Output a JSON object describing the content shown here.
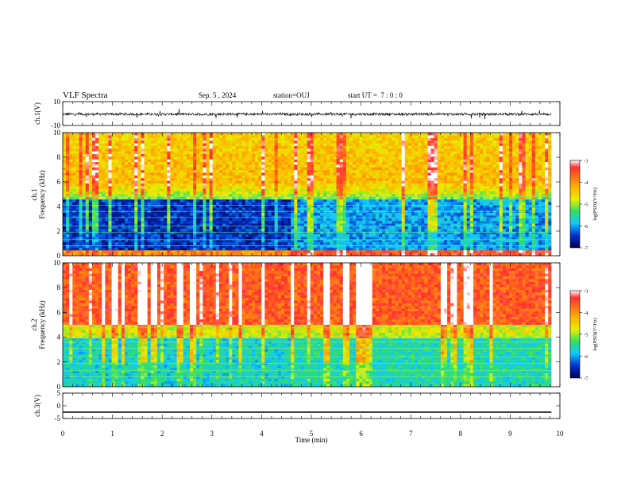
{
  "header": {
    "title": "VLF Spectra",
    "date": "Sep. 5 , 2024",
    "station": "station=OUJ",
    "start": "start UT =  7 : 0 : 0"
  },
  "chart_data": [
    {
      "id": "ch1-waveform",
      "type": "line",
      "ylabel": "ch.1(V)",
      "ylim": [
        -10,
        10
      ],
      "y_ticks": [
        "10",
        "-10"
      ],
      "xlim": [
        0,
        10
      ],
      "description_level": -0.5
    },
    {
      "id": "ch1-spectrogram",
      "type": "heatmap",
      "ylabel_channel": "ch.1",
      "ylabel": "Frequency (kHz)",
      "ylim": [
        0,
        10
      ],
      "y_ticks": [
        "0",
        "2",
        "4",
        "6",
        "8",
        "10"
      ],
      "xlim": [
        0,
        10
      ],
      "data_end_min": 9.83,
      "colorbar": {
        "label": "log(PSD)(V²/Hz)",
        "range": [
          -7,
          -3
        ],
        "ticks": [
          "-3",
          "-4",
          "-5",
          "-6",
          "-7"
        ]
      }
    },
    {
      "id": "ch2-spectrogram",
      "type": "heatmap",
      "ylabel_channel": "ch.2",
      "ylabel": "Frequency (kHz)",
      "ylim": [
        0,
        10
      ],
      "y_ticks": [
        "0",
        "2",
        "4",
        "6",
        "8",
        "10"
      ],
      "xlim": [
        0,
        10
      ],
      "data_end_min": 9.83,
      "colorbar": {
        "label": "log(PSD)(V²/Hz)",
        "range": [
          -7,
          -3
        ],
        "ticks": [
          "-3",
          "-4",
          "-5",
          "-6",
          "-7"
        ]
      }
    },
    {
      "id": "ch3-waveform",
      "type": "line",
      "ylabel": "ch.3(V)",
      "ylim": [
        -5,
        5
      ],
      "y_ticks": [
        "5",
        "0",
        "-5"
      ],
      "xlim": [
        0,
        10
      ],
      "level": -2.5
    }
  ],
  "x_axis": {
    "label": "Time (min)",
    "ticks": [
      "0",
      "1",
      "2",
      "3",
      "4",
      "5",
      "6",
      "7",
      "8",
      "9",
      "10"
    ]
  }
}
